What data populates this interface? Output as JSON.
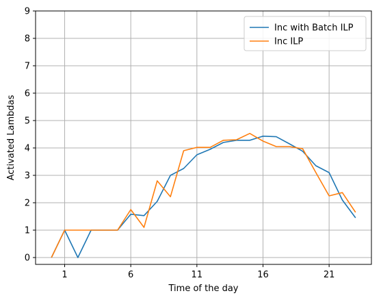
{
  "chart_data": {
    "type": "line",
    "title": "",
    "xlabel": "Time of the day",
    "ylabel": "Activated Lambdas",
    "x": [
      0,
      1,
      2,
      3,
      4,
      5,
      6,
      7,
      8,
      9,
      10,
      11,
      12,
      13,
      14,
      15,
      16,
      17,
      18,
      19,
      20,
      21,
      22,
      23
    ],
    "xlim": [
      -1.2,
      24.2
    ],
    "ylim": [
      -0.25,
      9
    ],
    "xticks": [
      1,
      6,
      11,
      16,
      21
    ],
    "yticks": [
      0,
      1,
      2,
      3,
      4,
      5,
      6,
      7,
      8,
      9
    ],
    "grid": true,
    "legend_position": "top-right",
    "series": [
      {
        "name": "Inc with Batch ILP",
        "color": "#1f77b4",
        "values": [
          0,
          1,
          0,
          1,
          1,
          1,
          1.58,
          1.53,
          2.05,
          3.0,
          3.25,
          3.75,
          3.95,
          4.2,
          4.28,
          4.28,
          4.43,
          4.41,
          4.15,
          3.88,
          3.35,
          3.1,
          2.1,
          1.45
        ]
      },
      {
        "name": "Inc ILP",
        "color": "#ff7f0e",
        "values": [
          0,
          1,
          1,
          1,
          1,
          1,
          1.75,
          1.1,
          2.8,
          2.22,
          3.9,
          4.02,
          4.02,
          4.28,
          4.3,
          4.53,
          4.25,
          4.05,
          4.05,
          3.97,
          3.1,
          2.25,
          2.37,
          1.65
        ]
      }
    ]
  }
}
